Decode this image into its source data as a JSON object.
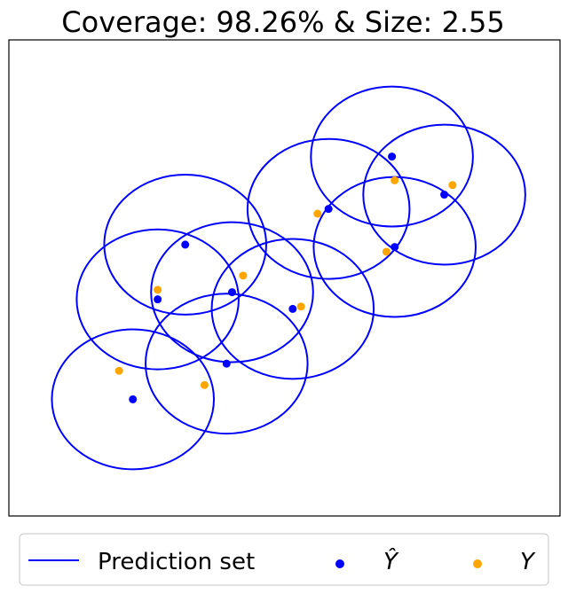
{
  "chart_data": {
    "type": "scatter",
    "title": "Coverage: 98.26% & Size: 2.55",
    "xlim": [
      0,
      10
    ],
    "ylim": [
      0,
      10
    ],
    "axes_ticks": "hidden",
    "grid": false,
    "legend": {
      "placement": "bottom",
      "entries": [
        {
          "label": "Prediction set",
          "marker": "line",
          "color": "#0000ff"
        },
        {
          "label": "Ŷ",
          "marker": "dot",
          "color": "#0000ff"
        },
        {
          "label": "Y",
          "marker": "dot",
          "color": "#ffa500"
        }
      ]
    },
    "prediction_radius": 1.47,
    "y_hat": [
      {
        "x": 2.25,
        "y": 2.45
      },
      {
        "x": 2.7,
        "y": 4.55
      },
      {
        "x": 3.2,
        "y": 5.7
      },
      {
        "x": 3.95,
        "y": 3.2
      },
      {
        "x": 4.05,
        "y": 4.7
      },
      {
        "x": 5.15,
        "y": 4.35
      },
      {
        "x": 5.8,
        "y": 6.45
      },
      {
        "x": 6.95,
        "y": 7.55
      },
      {
        "x": 7.0,
        "y": 5.65
      },
      {
        "x": 7.9,
        "y": 6.75
      }
    ],
    "y_true": [
      {
        "x": 2.0,
        "y": 3.05
      },
      {
        "x": 2.7,
        "y": 4.75
      },
      {
        "x": 3.55,
        "y": 2.75
      },
      {
        "x": 4.25,
        "y": 5.05
      },
      {
        "x": 5.3,
        "y": 4.4
      },
      {
        "x": 5.6,
        "y": 6.35
      },
      {
        "x": 6.85,
        "y": 5.55
      },
      {
        "x": 7.0,
        "y": 7.05
      },
      {
        "x": 8.05,
        "y": 6.95
      }
    ],
    "colors": {
      "prediction_set": "#0000ff",
      "y_hat": "#0000ff",
      "y_true": "#ffa500"
    }
  }
}
